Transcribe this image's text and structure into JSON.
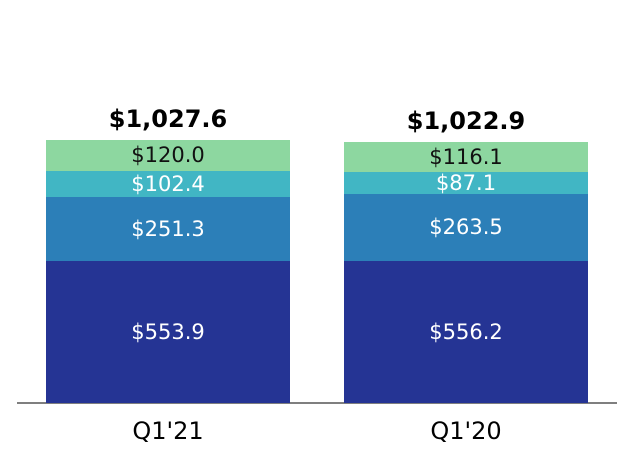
{
  "chart_data": {
    "type": "bar",
    "variant": "stacked",
    "title": "",
    "xlabel": "",
    "ylabel": "",
    "categories": [
      "Q1'21",
      "Q1'20"
    ],
    "totals": {
      "values": [
        1027.6,
        1022.9
      ],
      "labels": [
        "$1,027.6",
        "$1,022.9"
      ]
    },
    "series": [
      {
        "name": "green-top-segment",
        "color": "#8dd7a0",
        "label_color": "#111111",
        "values": [
          120.0,
          116.1
        ],
        "labels": [
          "$120.0",
          "$116.1"
        ]
      },
      {
        "name": "teal-segment",
        "color": "#41b6c4",
        "label_color": "#ffffff",
        "values": [
          102.4,
          87.1
        ],
        "labels": [
          "$102.4",
          "$87.1"
        ]
      },
      {
        "name": "blue-segment",
        "color": "#2c7fb8",
        "label_color": "#ffffff",
        "values": [
          251.3,
          263.5
        ],
        "labels": [
          "$251.3",
          "$263.5"
        ]
      },
      {
        "name": "navy-bottom-segment",
        "color": "#253494",
        "label_color": "#ffffff",
        "values": [
          553.9,
          556.2
        ],
        "labels": [
          "$553.9",
          "$556.2"
        ]
      }
    ],
    "ylim": [
      0,
      1027.6
    ],
    "grid": false,
    "legend": "none",
    "axis": {
      "baseline_color": "#7f7f7f"
    }
  },
  "colors": {
    "background": "#ffffff",
    "total_text": "#000000",
    "tick_text": "#000000"
  }
}
